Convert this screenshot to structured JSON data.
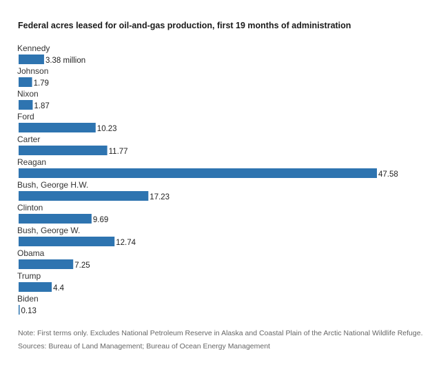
{
  "chart_data": {
    "type": "bar",
    "orientation": "horizontal",
    "title": "Federal acres leased for oil-and-gas production, first 19 months of administration",
    "categories": [
      "Kennedy",
      "Johnson",
      "Nixon",
      "Ford",
      "Carter",
      "Reagan",
      "Bush, George H.W.",
      "Clinton",
      "Bush, George W.",
      "Obama",
      "Trump",
      "Biden"
    ],
    "values": [
      3.38,
      1.79,
      1.87,
      10.23,
      11.77,
      47.58,
      17.23,
      9.69,
      12.74,
      7.25,
      4.4,
      0.13
    ],
    "value_labels": [
      "3.38 million",
      "1.79",
      "1.87",
      "10.23",
      "11.77",
      "47.58",
      "17.23",
      "9.69",
      "12.74",
      "7.25",
      "4.4",
      "0.13"
    ],
    "bar_color": "#2e74b0",
    "grid": false,
    "legend": "none"
  },
  "note": "Note: First terms only. Excludes National Petroleum Reserve in Alaska and Coastal Plain of the Arctic National Wildlife Refuge.",
  "sources": "Sources: Bureau of Land Management; Bureau of Ocean Energy Management"
}
